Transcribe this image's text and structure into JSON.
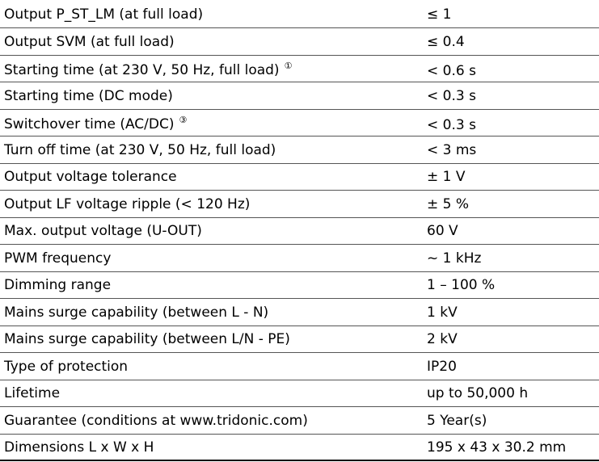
{
  "table": {
    "rows": [
      {
        "label": "Output P_ST_LM (at full load)",
        "value": "≤ 1"
      },
      {
        "label": "Output SVM (at full load)",
        "value": "≤ 0.4"
      },
      {
        "label": "Starting time (at 230 V, 50 Hz, full load)",
        "note": "①",
        "value": "< 0.6 s"
      },
      {
        "label": "Starting time (DC mode)",
        "value": "< 0.3 s"
      },
      {
        "label": "Switchover time (AC/DC)",
        "note": "③",
        "value": "< 0.3 s"
      },
      {
        "label": "Turn off time (at 230 V, 50 Hz, full load)",
        "value": "< 3 ms"
      },
      {
        "label": "Output voltage tolerance",
        "value": "± 1 V"
      },
      {
        "label": "Output LF voltage ripple (< 120 Hz)",
        "value": "± 5 %"
      },
      {
        "label": "Max. output voltage (U-OUT)",
        "value": "60 V"
      },
      {
        "label": "PWM frequency",
        "value": "~ 1 kHz"
      },
      {
        "label": "Dimming range",
        "value": "1 – 100 %"
      },
      {
        "label": "Mains surge capability (between L - N)",
        "value": "1 kV"
      },
      {
        "label": "Mains surge capability (between L/N - PE)",
        "value": "2 kV"
      },
      {
        "label": "Type of protection",
        "value": "IP20"
      },
      {
        "label": "Lifetime",
        "value": "up to 50,000 h"
      },
      {
        "label": "Guarantee (conditions at www.tridonic.com)",
        "value": "5 Year(s)"
      },
      {
        "label": "Dimensions L x W x H",
        "value": "195 x 43 x 30.2 mm"
      }
    ]
  }
}
